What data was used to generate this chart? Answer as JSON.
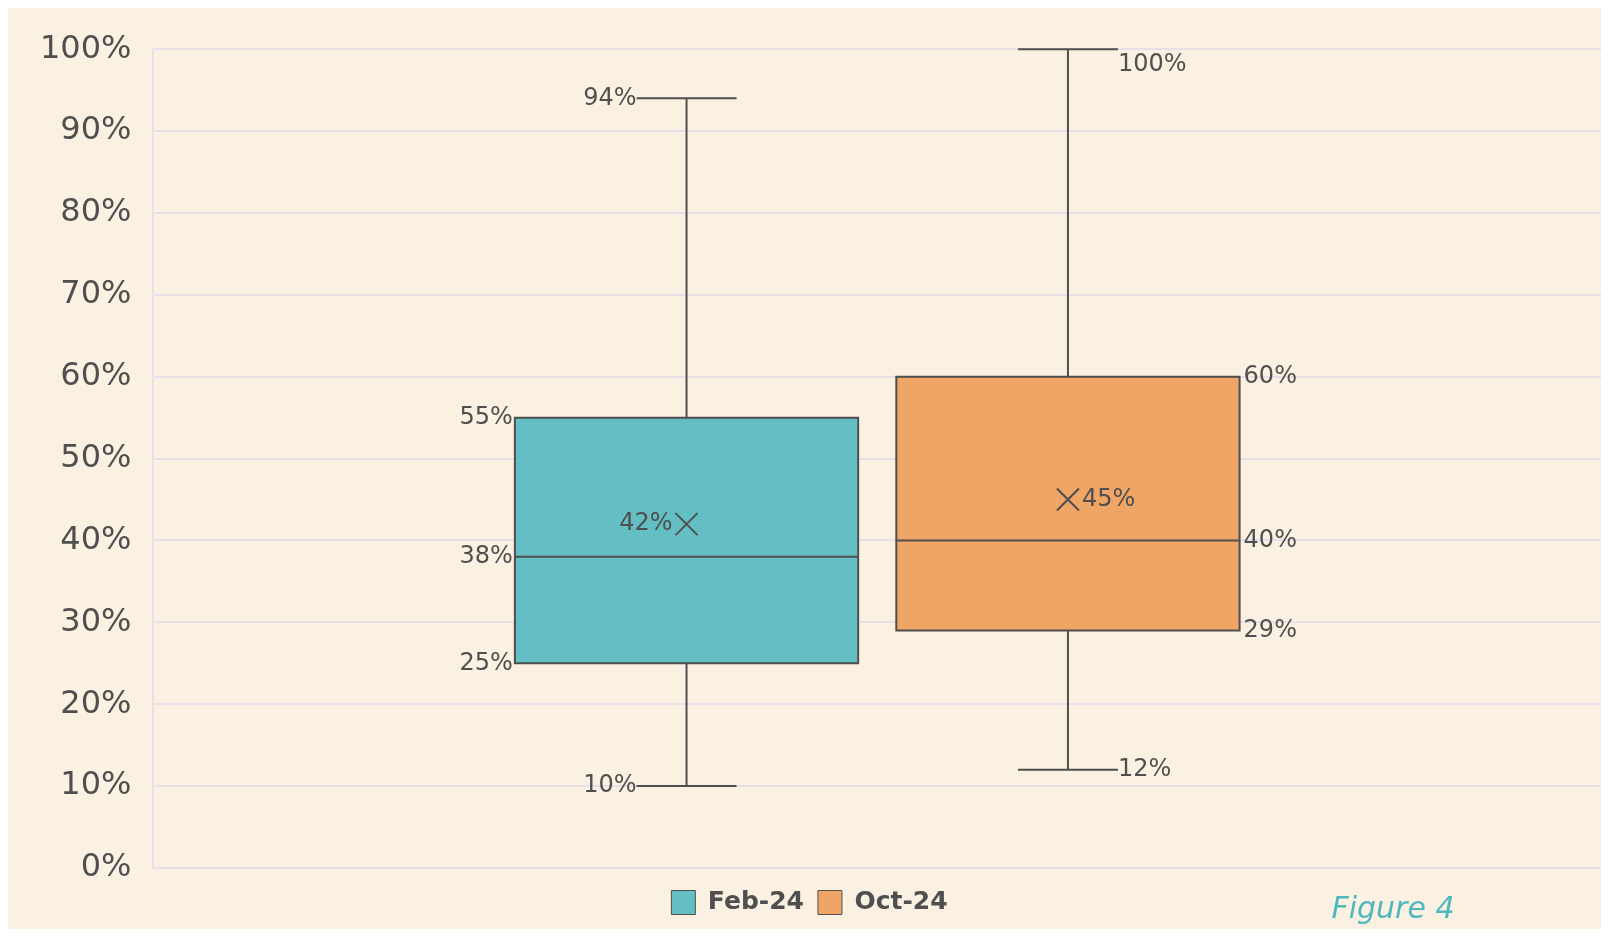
{
  "chart_data": {
    "type": "box",
    "categories": [
      null
    ],
    "series": [
      {
        "name": "Feb-24",
        "color": "#63bfc4",
        "boxes": [
          {
            "low": 10,
            "q1": 25,
            "median": 38,
            "q3": 55,
            "high": 94,
            "mean": 42
          }
        ]
      },
      {
        "name": "Oct-24",
        "color": "#efa566",
        "boxes": [
          {
            "low": 12,
            "q1": 29,
            "median": 40,
            "q3": 60,
            "high": 100,
            "mean": 45
          }
        ]
      }
    ],
    "ylim": [
      0,
      100
    ],
    "yticks": [
      {
        "value": 0,
        "label": "0%"
      },
      {
        "value": 10,
        "label": "10%"
      },
      {
        "value": 20,
        "label": "20%"
      },
      {
        "value": 30,
        "label": "30%"
      },
      {
        "value": 40,
        "label": "40%"
      },
      {
        "value": 50,
        "label": "50%"
      },
      {
        "value": 60,
        "label": "60%"
      },
      {
        "value": 70,
        "label": "70%"
      },
      {
        "value": 80,
        "label": "80%"
      },
      {
        "value": 90,
        "label": "90%"
      },
      {
        "value": 100,
        "label": "100%"
      }
    ],
    "grid": "y",
    "legend": "bottom",
    "annotations": [
      "94%",
      "55%",
      "42%",
      "38%",
      "25%",
      "10%",
      "100%",
      "60%",
      "45%",
      "40%",
      "29%",
      "12%",
      "Figure 4"
    ]
  }
}
